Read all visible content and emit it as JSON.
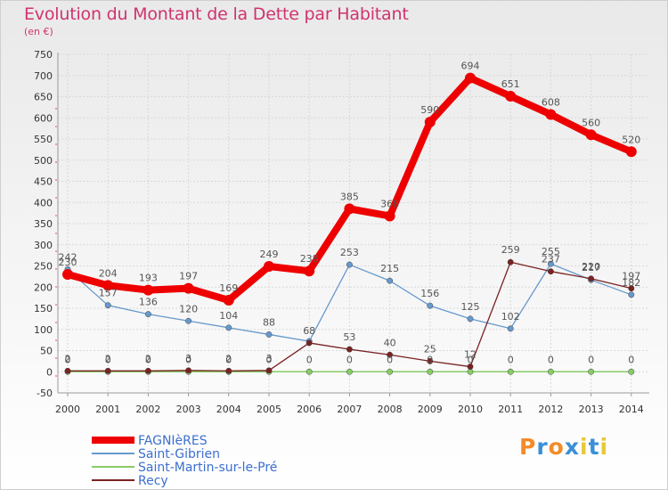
{
  "chart_data": {
    "type": "line",
    "title": "Evolution du Montant de la Dette par Habitant",
    "subtitle": "(en €)",
    "x": [
      "2000",
      "2001",
      "2002",
      "2003",
      "2004",
      "2005",
      "2006",
      "2007",
      "2008",
      "2009",
      "2010",
      "2011",
      "2012",
      "2013",
      "2014"
    ],
    "ylim": [
      -50,
      750
    ],
    "yticks": [
      -50,
      0,
      50,
      100,
      150,
      200,
      250,
      300,
      350,
      400,
      450,
      500,
      550,
      600,
      650,
      700,
      750
    ],
    "grid": true,
    "legend_position": "bottom-left",
    "series": [
      {
        "name": "FAGNIèRES",
        "color": "#ee0000",
        "values": [
          230,
          204,
          193,
          197,
          169,
          249,
          238,
          385,
          368,
          590,
          694,
          651,
          608,
          560,
          520
        ],
        "labels": [
          "230",
          "204",
          "193",
          "197",
          "169",
          "249",
          "238",
          "385",
          "368",
          "590",
          "694",
          "651",
          "608",
          "560",
          "520"
        ]
      },
      {
        "name": "Saint-Gibrien",
        "color": "#6699cc",
        "values": [
          242,
          157,
          136,
          120,
          104,
          88,
          72,
          253,
          215,
          156,
          125,
          102,
          255,
          217,
          182
        ],
        "labels": [
          "242",
          "157",
          "136",
          "120",
          "104",
          "88",
          "",
          "253",
          "215",
          "156",
          "125",
          "102",
          "255",
          "217",
          "182"
        ]
      },
      {
        "name": "Saint-Martin-sur-le-Pré",
        "color": "#88cc66",
        "values": [
          0,
          0,
          0,
          0,
          0,
          0,
          0,
          0,
          0,
          0,
          0,
          0,
          0,
          0,
          0
        ],
        "labels": [
          "0",
          "0",
          "0",
          "0",
          "0",
          "0",
          "0",
          "0",
          "0",
          "0",
          "0",
          "0",
          "0",
          "0",
          "0"
        ]
      },
      {
        "name": "Recy",
        "color": "#7a2222",
        "values": [
          2,
          2,
          2,
          3,
          2,
          3,
          68,
          53,
          40,
          25,
          12,
          259,
          237,
          220,
          197
        ],
        "labels": [
          "2",
          "2",
          "2",
          "3",
          "2",
          "3",
          "68",
          "53",
          "40",
          "25",
          "12",
          "259",
          "237",
          "220",
          "197"
        ]
      }
    ]
  },
  "logo": {
    "text": "Proxiti",
    "colors": [
      "#f28c28",
      "#3a8fd6",
      "#f28c28",
      "#3a8fd6",
      "#e8c83a",
      "#3a8fd6",
      "#e8c83a"
    ]
  }
}
